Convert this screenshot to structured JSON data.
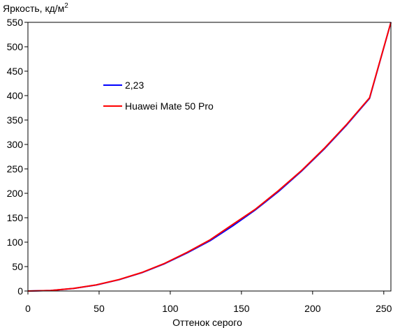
{
  "chart_data": {
    "type": "line",
    "title": "",
    "ylabel": "Яркость, кд/м",
    "ylabel_superscript": "2",
    "xlabel": "Оттенок серого",
    "xlim": [
      0,
      255
    ],
    "ylim": [
      0,
      550
    ],
    "x_ticks": [
      "0",
      "50",
      "100",
      "150",
      "200",
      "250"
    ],
    "y_ticks": [
      "0",
      "50",
      "100",
      "150",
      "200",
      "250",
      "300",
      "350",
      "400",
      "450",
      "500",
      "550"
    ],
    "grid": false,
    "legend_position": "upper-left",
    "series": [
      {
        "name": "2,23",
        "color": "#0000ff",
        "x": [
          0,
          16,
          32,
          48,
          64,
          80,
          96,
          112,
          128,
          144,
          160,
          176,
          192,
          208,
          224,
          240,
          255
        ],
        "y": [
          0,
          1.1,
          5.1,
          12.3,
          23.1,
          37.5,
          55.8,
          78.3,
          103.0,
          133.5,
          166.5,
          203.6,
          244.8,
          290.3,
          340.1,
          394.3,
          550.0
        ]
      },
      {
        "name": "Huawei Mate 50 Pro",
        "color": "#ff0000",
        "x": [
          0,
          16,
          32,
          48,
          64,
          80,
          96,
          112,
          128,
          144,
          160,
          176,
          192,
          208,
          224,
          240,
          255
        ],
        "y": [
          0,
          1.2,
          5.3,
          12.6,
          23.4,
          37.8,
          56.5,
          79.5,
          104.8,
          136.5,
          168.0,
          205.5,
          246.0,
          291.5,
          341.5,
          395.5,
          550.0
        ]
      }
    ]
  }
}
